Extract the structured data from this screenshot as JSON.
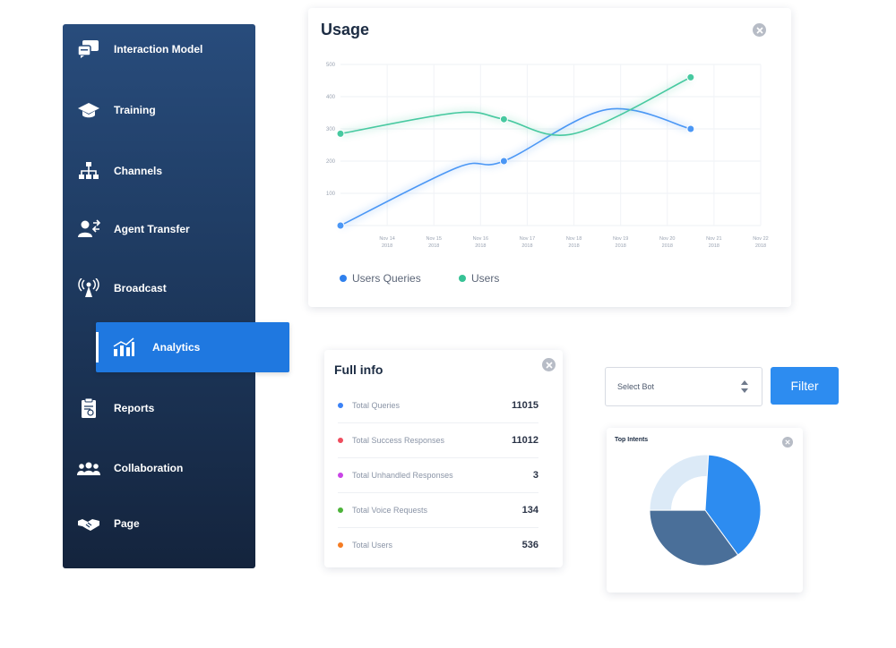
{
  "sidebar": {
    "items": [
      {
        "label": "Interaction Model",
        "icon": "chat-bubbles-icon"
      },
      {
        "label": "Training",
        "icon": "graduation-cap-icon"
      },
      {
        "label": "Channels",
        "icon": "hierarchy-icon"
      },
      {
        "label": "Agent Transfer",
        "icon": "agent-transfer-icon"
      },
      {
        "label": "Broadcast",
        "icon": "broadcast-tower-icon"
      },
      {
        "label": "Analytics",
        "icon": "bar-chart-icon"
      },
      {
        "label": "Reports",
        "icon": "clipboard-icon"
      },
      {
        "label": "Collaboration",
        "icon": "group-icon"
      },
      {
        "label": "Page",
        "icon": "handshake-icon"
      }
    ],
    "active": "Analytics"
  },
  "usage": {
    "title": "Usage",
    "chart_data": {
      "type": "line",
      "title": "Usage",
      "y_ticks": [
        "500",
        "400",
        "300",
        "200",
        "100"
      ],
      "ylim": [
        0,
        500
      ],
      "x_ticks": [
        {
          "date": "Nov 14",
          "year": "2018"
        },
        {
          "date": "Nov 15",
          "year": "2018"
        },
        {
          "date": "Nov 16",
          "year": "2018"
        },
        {
          "date": "Nov 17",
          "year": "2018"
        },
        {
          "date": "Nov 18",
          "year": "2018"
        },
        {
          "date": "Nov 19",
          "year": "2018"
        },
        {
          "date": "Nov 20",
          "year": "2018"
        },
        {
          "date": "Nov 21",
          "year": "2018"
        },
        {
          "date": "Nov 22",
          "year": "2018"
        }
      ],
      "series": [
        {
          "name": "Users Queries",
          "color": "#4b97f5",
          "points": [
            [
              13,
              0
            ],
            [
              15.5,
              180
            ],
            [
              16.5,
              200
            ],
            [
              18.7,
              360
            ],
            [
              20.5,
              300
            ]
          ]
        },
        {
          "name": "Users",
          "color": "#47c9a0",
          "points": [
            [
              13,
              285
            ],
            [
              15.5,
              350
            ],
            [
              16.5,
              330
            ],
            [
              18,
              285
            ],
            [
              20.5,
              460
            ]
          ]
        }
      ],
      "marked_points": {
        "Users Queries": [
          [
            13,
            0
          ],
          [
            16.5,
            200
          ],
          [
            20.5,
            300
          ]
        ],
        "Users": [
          [
            13,
            285
          ],
          [
            16.5,
            330
          ],
          [
            20.5,
            460
          ]
        ]
      },
      "grid": true,
      "legend": "bottom-left"
    }
  },
  "full_info": {
    "title": "Full info",
    "rows": [
      {
        "label": "Total Queries",
        "value": "11015",
        "color": "#3b82f6"
      },
      {
        "label": "Total Success Responses",
        "value": "11012",
        "color": "#ef4d5e"
      },
      {
        "label": "Total Unhandled Responses",
        "value": "3",
        "color": "#c945e6"
      },
      {
        "label": "Total Voice Requests",
        "value": "134",
        "color": "#4db33a"
      },
      {
        "label": "Total Users",
        "value": "536",
        "color": "#f57c23"
      }
    ]
  },
  "controls": {
    "select_placeholder": "Select Bot",
    "filter_label": "Filter"
  },
  "top_intents": {
    "title": "Top Intents",
    "chart_data": {
      "type": "pie",
      "slices": [
        {
          "value": 39,
          "color": "#2d8cf0"
        },
        {
          "value": 35,
          "color": "#4a6f99"
        },
        {
          "value": 26,
          "color": "#dceaf7"
        }
      ]
    }
  }
}
